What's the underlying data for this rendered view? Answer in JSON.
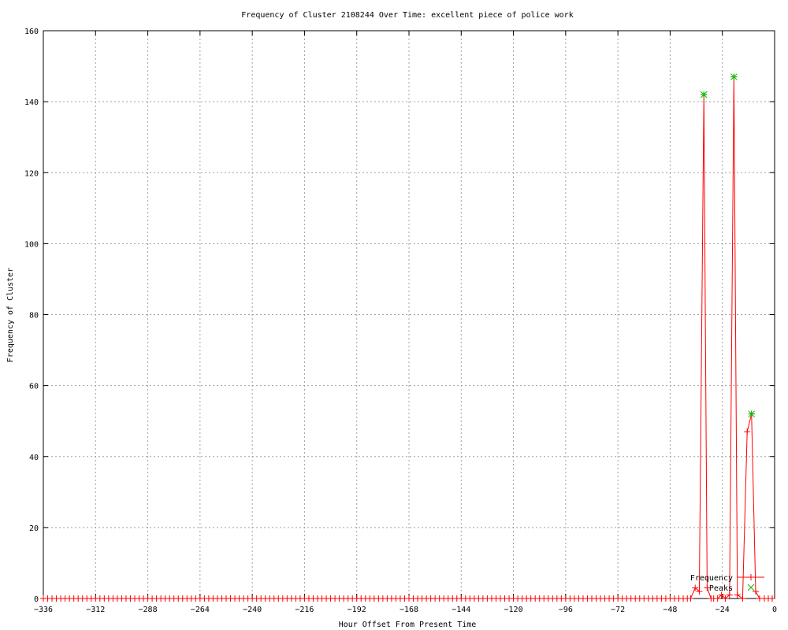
{
  "chart_data": {
    "type": "line",
    "title": "Frequency of Cluster 2108244 Over Time: excellent piece of police work",
    "xlabel": "Hour Offset From Present Time",
    "ylabel": "Frequency of Cluster",
    "xlim": [
      -336,
      0
    ],
    "ylim": [
      0,
      160
    ],
    "xticks": [
      -336,
      -312,
      -288,
      -264,
      -240,
      -216,
      -192,
      -168,
      -144,
      -120,
      -96,
      -72,
      -48,
      -24,
      0
    ],
    "yticks": [
      0,
      20,
      40,
      60,
      80,
      100,
      120,
      140,
      160
    ],
    "grid": true,
    "legend_position": "bottom-right",
    "series": [
      {
        "name": "Frequency",
        "color": "#ff0000",
        "marker": "plus",
        "points": [
          [
            -336,
            0
          ],
          [
            -334,
            0
          ],
          [
            -332,
            0
          ],
          [
            -330,
            0
          ],
          [
            -328,
            0
          ],
          [
            -326,
            0
          ],
          [
            -324,
            0
          ],
          [
            -322,
            0
          ],
          [
            -320,
            0
          ],
          [
            -318,
            0
          ],
          [
            -316,
            0
          ],
          [
            -314,
            0
          ],
          [
            -312,
            0
          ],
          [
            -310,
            0
          ],
          [
            -308,
            0
          ],
          [
            -306,
            0
          ],
          [
            -304,
            0
          ],
          [
            -302,
            0
          ],
          [
            -300,
            0
          ],
          [
            -298,
            0
          ],
          [
            -296,
            0
          ],
          [
            -294,
            0
          ],
          [
            -292,
            0
          ],
          [
            -290,
            0
          ],
          [
            -288,
            0
          ],
          [
            -286,
            0
          ],
          [
            -284,
            0
          ],
          [
            -282,
            0
          ],
          [
            -280,
            0
          ],
          [
            -278,
            0
          ],
          [
            -276,
            0
          ],
          [
            -274,
            0
          ],
          [
            -272,
            0
          ],
          [
            -270,
            0
          ],
          [
            -268,
            0
          ],
          [
            -266,
            0
          ],
          [
            -264,
            0
          ],
          [
            -262,
            0
          ],
          [
            -260,
            0
          ],
          [
            -258,
            0
          ],
          [
            -256,
            0
          ],
          [
            -254,
            0
          ],
          [
            -252,
            0
          ],
          [
            -250,
            0
          ],
          [
            -248,
            0
          ],
          [
            -246,
            0
          ],
          [
            -244,
            0
          ],
          [
            -242,
            0
          ],
          [
            -240,
            0
          ],
          [
            -238,
            0
          ],
          [
            -236,
            0
          ],
          [
            -234,
            0
          ],
          [
            -232,
            0
          ],
          [
            -230,
            0
          ],
          [
            -228,
            0
          ],
          [
            -226,
            0
          ],
          [
            -224,
            0
          ],
          [
            -222,
            0
          ],
          [
            -220,
            0
          ],
          [
            -218,
            0
          ],
          [
            -216,
            0
          ],
          [
            -214,
            0
          ],
          [
            -212,
            0
          ],
          [
            -210,
            0
          ],
          [
            -208,
            0
          ],
          [
            -206,
            0
          ],
          [
            -204,
            0
          ],
          [
            -202,
            0
          ],
          [
            -200,
            0
          ],
          [
            -198,
            0
          ],
          [
            -196,
            0
          ],
          [
            -194,
            0
          ],
          [
            -192,
            0
          ],
          [
            -190,
            0
          ],
          [
            -188,
            0
          ],
          [
            -186,
            0
          ],
          [
            -184,
            0
          ],
          [
            -182,
            0
          ],
          [
            -180,
            0
          ],
          [
            -178,
            0
          ],
          [
            -176,
            0
          ],
          [
            -174,
            0
          ],
          [
            -172,
            0
          ],
          [
            -170,
            0
          ],
          [
            -168,
            0
          ],
          [
            -166,
            0
          ],
          [
            -164,
            0
          ],
          [
            -162,
            0
          ],
          [
            -160,
            0
          ],
          [
            -158,
            0
          ],
          [
            -156,
            0
          ],
          [
            -154,
            0
          ],
          [
            -152,
            0
          ],
          [
            -150,
            0
          ],
          [
            -148,
            0
          ],
          [
            -146,
            0
          ],
          [
            -144,
            0
          ],
          [
            -142,
            0
          ],
          [
            -140,
            0
          ],
          [
            -138,
            0
          ],
          [
            -136,
            0
          ],
          [
            -134,
            0
          ],
          [
            -132,
            0
          ],
          [
            -130,
            0
          ],
          [
            -128,
            0
          ],
          [
            -126,
            0
          ],
          [
            -124,
            0
          ],
          [
            -122,
            0
          ],
          [
            -120,
            0
          ],
          [
            -118,
            0
          ],
          [
            -116,
            0
          ],
          [
            -114,
            0
          ],
          [
            -112,
            0
          ],
          [
            -110,
            0
          ],
          [
            -108,
            0
          ],
          [
            -106,
            0
          ],
          [
            -104,
            0
          ],
          [
            -102,
            0
          ],
          [
            -100,
            0
          ],
          [
            -98,
            0
          ],
          [
            -96,
            0
          ],
          [
            -94,
            0
          ],
          [
            -92,
            0
          ],
          [
            -90,
            0
          ],
          [
            -88,
            0
          ],
          [
            -86,
            0
          ],
          [
            -84,
            0
          ],
          [
            -82,
            0
          ],
          [
            -80,
            0
          ],
          [
            -78,
            0
          ],
          [
            -76,
            0
          ],
          [
            -74,
            0
          ],
          [
            -72,
            0
          ],
          [
            -70,
            0
          ],
          [
            -68,
            0
          ],
          [
            -66,
            0
          ],
          [
            -64,
            0
          ],
          [
            -62,
            0
          ],
          [
            -60,
            0
          ],
          [
            -58,
            0
          ],
          [
            -56,
            0
          ],
          [
            -54,
            0
          ],
          [
            -52,
            0
          ],
          [
            -50,
            0
          ],
          [
            -48,
            0
          ],
          [
            -46,
            0
          ],
          [
            -44,
            0
          ],
          [
            -42,
            0
          ],
          [
            -40.1,
            0
          ],
          [
            -38.6,
            0
          ],
          [
            -36.5,
            3
          ],
          [
            -34.6,
            2
          ],
          [
            -32.5,
            142
          ],
          [
            -31.0,
            3
          ],
          [
            -29.2,
            0
          ],
          [
            -28.0,
            0
          ],
          [
            -26.2,
            0
          ],
          [
            -24.4,
            1
          ],
          [
            -22.6,
            0
          ],
          [
            -20.7,
            1
          ],
          [
            -18.7,
            147
          ],
          [
            -17.1,
            1
          ],
          [
            -14.7,
            0
          ],
          [
            -12.6,
            47
          ],
          [
            -10.6,
            52
          ],
          [
            -8.7,
            2
          ],
          [
            -6.9,
            0
          ],
          [
            -4.7,
            0
          ],
          [
            -2.9,
            0
          ],
          [
            -1.1,
            0
          ]
        ]
      },
      {
        "name": "Peaks",
        "color": "#00c000",
        "marker": "cross",
        "points": [
          [
            -32.5,
            142
          ],
          [
            -18.7,
            147
          ],
          [
            -10.6,
            52
          ]
        ]
      }
    ]
  }
}
